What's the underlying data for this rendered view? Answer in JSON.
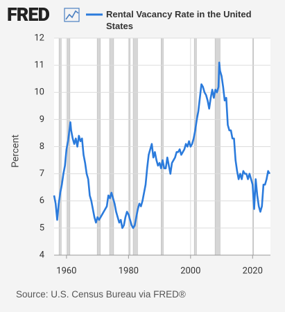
{
  "logo": "FRED",
  "source": "Source: U.S. Census Bureau via FRED®",
  "chart_data": {
    "type": "line",
    "ylabel": "Percent",
    "xlim": [
      1956,
      2025.75
    ],
    "ylim": [
      4,
      12
    ],
    "xticks": [
      1960,
      1980,
      2000,
      2020
    ],
    "yticks": [
      4,
      5,
      6,
      7,
      8,
      9,
      10,
      11,
      12
    ],
    "grid": true,
    "recessions": [
      [
        1957.6,
        1958.3
      ],
      [
        1960.3,
        1961.1
      ],
      [
        1969.9,
        1970.9
      ],
      [
        1973.9,
        1975.2
      ],
      [
        1980.0,
        1980.5
      ],
      [
        1981.5,
        1982.9
      ],
      [
        1990.5,
        1991.2
      ],
      [
        2001.2,
        2001.9
      ],
      [
        2007.9,
        2009.5
      ],
      [
        2020.1,
        2020.3
      ]
    ],
    "x": [
      1956,
      1956.5,
      1957,
      1957.5,
      1958,
      1958.5,
      1959,
      1959.5,
      1960,
      1960.5,
      1961.25,
      1961.5,
      1962,
      1962.5,
      1963,
      1963.5,
      1964,
      1964.5,
      1965,
      1965.5,
      1966,
      1966.5,
      1967,
      1967.5,
      1968,
      1968.5,
      1969,
      1969.5,
      1970,
      1970.5,
      1971,
      1971.5,
      1972,
      1972.5,
      1973,
      1973.5,
      1974,
      1974.5,
      1975,
      1975.5,
      1976,
      1976.5,
      1977,
      1977.5,
      1978,
      1978.5,
      1979,
      1979.5,
      1980,
      1980.5,
      1981,
      1981.5,
      1982,
      1982.5,
      1983,
      1983.5,
      1984,
      1984.5,
      1985,
      1985.5,
      1986,
      1986.5,
      1987,
      1987.5,
      1988,
      1988.5,
      1989,
      1989.5,
      1990,
      1990.5,
      1991,
      1991.5,
      1992,
      1992.5,
      1993,
      1993.5,
      1994,
      1994.5,
      1995,
      1995.5,
      1996,
      1996.5,
      1997,
      1997.5,
      1998,
      1998.5,
      1999,
      1999.5,
      2000,
      2000.5,
      2001,
      2001.5,
      2002,
      2002.5,
      2003,
      2003.5,
      2004,
      2004.5,
      2005,
      2005.5,
      2006,
      2006.5,
      2007,
      2007.5,
      2008,
      2008.5,
      2009,
      2009.25,
      2009.5,
      2010,
      2010.5,
      2011,
      2011.5,
      2012,
      2012.5,
      2013,
      2013.5,
      2014,
      2014.5,
      2015,
      2015.5,
      2016,
      2016.5,
      2017,
      2017.5,
      2018,
      2018.5,
      2019,
      2019.5,
      2020,
      2020.5,
      2021,
      2021.5,
      2022,
      2022.5,
      2023,
      2023.5,
      2024,
      2024.5,
      2025,
      2025.5
    ],
    "series": [
      {
        "name": "Rental Vacancy Rate in the United States",
        "color": "#2b7bdc",
        "values": [
          6.2,
          5.9,
          5.3,
          5.9,
          6.3,
          6.6,
          7.0,
          7.3,
          7.9,
          8.2,
          8.9,
          8.6,
          8.3,
          8.1,
          8.3,
          8.0,
          8.4,
          8.2,
          8.3,
          7.7,
          7.4,
          7.0,
          6.8,
          6.2,
          6.0,
          5.7,
          5.4,
          5.2,
          5.4,
          5.3,
          5.4,
          5.5,
          5.6,
          5.7,
          5.8,
          6.2,
          6.1,
          6.3,
          6.1,
          5.9,
          5.6,
          5.4,
          5.2,
          5.3,
          5.0,
          5.1,
          5.4,
          5.6,
          5.5,
          5.3,
          5.1,
          5.0,
          5.1,
          5.4,
          5.7,
          5.9,
          5.8,
          6.0,
          6.3,
          6.6,
          7.2,
          7.7,
          7.9,
          8.1,
          7.6,
          7.8,
          7.5,
          7.3,
          7.4,
          7.2,
          7.5,
          7.2,
          7.2,
          7.6,
          7.3,
          7.0,
          7.4,
          7.5,
          7.6,
          7.8,
          7.8,
          7.9,
          7.7,
          7.8,
          7.9,
          8.1,
          8.0,
          8.2,
          8.0,
          8.1,
          8.3,
          8.6,
          9.0,
          9.3,
          9.8,
          10.3,
          10.2,
          10.0,
          9.9,
          9.7,
          9.4,
          9.8,
          10.1,
          9.8,
          10.1,
          10.0,
          10.2,
          11.1,
          10.8,
          10.6,
          10.2,
          9.7,
          9.8,
          8.8,
          8.6,
          8.6,
          8.3,
          8.3,
          7.5,
          7.1,
          6.8,
          7.0,
          6.8,
          7.1,
          7.0,
          7.0,
          6.8,
          7.0,
          6.8,
          6.6,
          5.7,
          6.8,
          6.2,
          5.8,
          5.6,
          5.8,
          6.6,
          6.6,
          6.8,
          7.1,
          7.0
        ]
      }
    ]
  }
}
